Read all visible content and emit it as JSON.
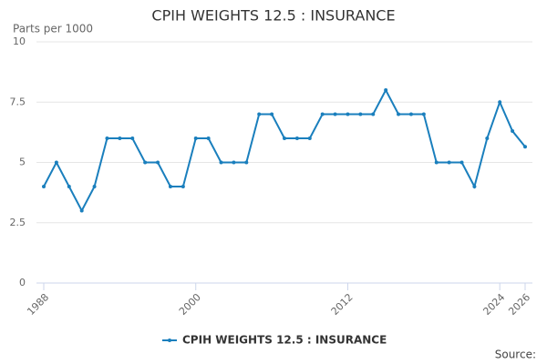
{
  "chart_data": {
    "type": "line",
    "title": "CPIH WEIGHTS 12.5 : INSURANCE",
    "y_label": "Parts per 1000",
    "source": "Source:",
    "x": [
      1988,
      1989,
      1990,
      1991,
      1992,
      1993,
      1994,
      1995,
      1996,
      1997,
      1998,
      1999,
      2000,
      2001,
      2002,
      2003,
      2004,
      2005,
      2006,
      2007,
      2008,
      2009,
      2010,
      2011,
      2012,
      2013,
      2014,
      2015,
      2016,
      2017,
      2018,
      2019,
      2020,
      2021,
      2022,
      2023,
      2024,
      2025,
      2026
    ],
    "series": [
      {
        "name": "CPIH WEIGHTS 12.5 : INSURANCE",
        "color": "#1a7fbd",
        "values": [
          4,
          5,
          4,
          3,
          4,
          6,
          6,
          6,
          5,
          5,
          4,
          4,
          6,
          6,
          5,
          5,
          5,
          7,
          7,
          6,
          6,
          6,
          7,
          7,
          7,
          7,
          7,
          8,
          7,
          7,
          7,
          5,
          5,
          5,
          4,
          6,
          7.5,
          6.3,
          5.65
        ]
      }
    ],
    "xlim": [
      1988,
      2026
    ],
    "xticks": [
      1988,
      2000,
      2012,
      2024,
      2026
    ],
    "ylim": [
      0,
      10
    ],
    "yticks": [
      0,
      2.5,
      5,
      7.5,
      10
    ],
    "grid": true
  }
}
